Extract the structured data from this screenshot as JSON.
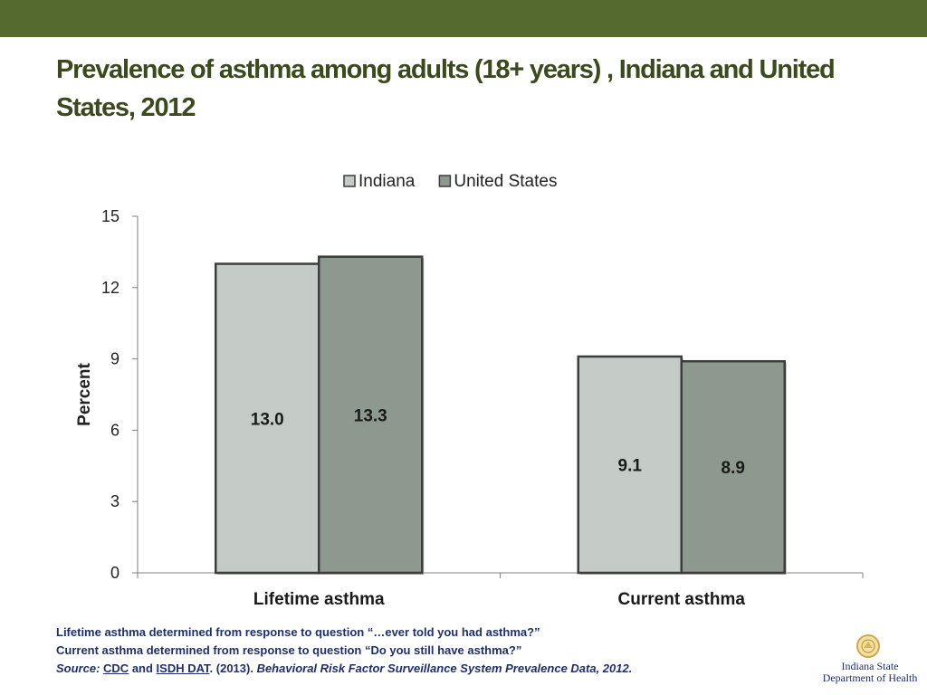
{
  "slide": {
    "title": "Prevalence of asthma among adults (18+ years) , Indiana and United States, 2012",
    "accent_color": "#556a2f"
  },
  "chart_data": {
    "type": "bar",
    "categories": [
      "Lifetime asthma",
      "Current asthma"
    ],
    "series": [
      {
        "name": "Indiana",
        "values": [
          13.0,
          9.1
        ],
        "labels": [
          "13.0",
          "9.1"
        ],
        "color": "#c5cbc6"
      },
      {
        "name": "United States",
        "values": [
          13.3,
          8.9
        ],
        "labels": [
          "13.3",
          "8.9"
        ],
        "color": "#8d998f"
      }
    ],
    "ylabel": "Percent",
    "ylim": [
      0,
      15
    ],
    "yticks": [
      0,
      3,
      6,
      9,
      12,
      15
    ],
    "legend": "top-center",
    "grid": false
  },
  "notes": {
    "line1": "Lifetime asthma determined from response to question “…ever told you had asthma?”",
    "line2": "Current asthma determined from response to question “Do you still have asthma?”",
    "source_label": "Source:",
    "link_cdc": "CDC",
    "and": " and ",
    "link_isdh": "ISDH DAT",
    "year": ". (2013). ",
    "citation": "Behavioral Risk Factor Surveillance System Prevalence Data, 2012."
  },
  "logo": {
    "icon": "seal-icon",
    "line1": "Indiana State",
    "line2": "Department of Health"
  }
}
